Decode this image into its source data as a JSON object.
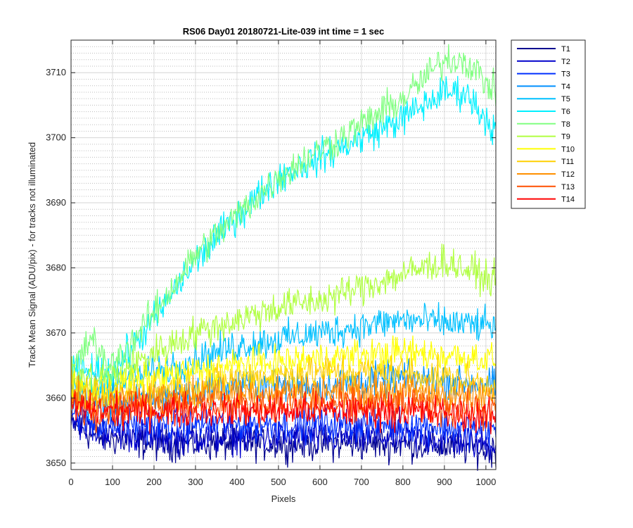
{
  "chart_data": {
    "type": "line",
    "title": "RS06 Day01 20180721-Lite-039 int time = 1 sec",
    "xlabel": "Pixels",
    "ylabel": "Track Mean Signal (ADU/pix) - for tracks not illuminated",
    "xlim": [
      0,
      1024
    ],
    "ylim": [
      3649,
      3715
    ],
    "xticks": [
      0,
      100,
      200,
      300,
      400,
      500,
      600,
      700,
      800,
      900,
      1000
    ],
    "yticks": [
      3650,
      3660,
      3670,
      3680,
      3690,
      3700,
      3710
    ],
    "grid": true,
    "legend_position": "outside-top-right",
    "series": [
      {
        "name": "T1",
        "color": "#00008f",
        "x": [
          0,
          60,
          200,
          400,
          600,
          800,
          1024
        ],
        "y": [
          3656,
          3654,
          3653,
          3653,
          3653,
          3653,
          3652
        ]
      },
      {
        "name": "T2",
        "color": "#0000cc",
        "x": [
          0,
          60,
          200,
          400,
          600,
          800,
          1024
        ],
        "y": [
          3657,
          3655,
          3654,
          3654,
          3654,
          3654,
          3653
        ]
      },
      {
        "name": "T3",
        "color": "#0030ff",
        "x": [
          0,
          60,
          200,
          400,
          600,
          800,
          1024
        ],
        "y": [
          3658,
          3656,
          3656,
          3656,
          3656,
          3656,
          3655
        ]
      },
      {
        "name": "T4",
        "color": "#0090ff",
        "x": [
          0,
          60,
          200,
          400,
          600,
          800,
          1024
        ],
        "y": [
          3660,
          3659,
          3660,
          3662,
          3662,
          3663,
          3662
        ]
      },
      {
        "name": "T5",
        "color": "#00c0ff",
        "x": [
          0,
          60,
          200,
          400,
          600,
          800,
          1024
        ],
        "y": [
          3662,
          3661,
          3664,
          3668,
          3670,
          3672,
          3671
        ]
      },
      {
        "name": "T6",
        "color": "#00f0ff",
        "x": [
          0,
          50,
          100,
          200,
          300,
          400,
          500,
          600,
          700,
          800,
          900,
          950,
          1024
        ],
        "y": [
          3664,
          3664,
          3664,
          3672,
          3681,
          3688,
          3694,
          3697,
          3700,
          3703,
          3707,
          3707,
          3701
        ]
      },
      {
        "name": "T8",
        "color": "#80ff80",
        "x": [
          0,
          40,
          50,
          70,
          100,
          200,
          300,
          400,
          500,
          600,
          700,
          800,
          900,
          950,
          1024
        ],
        "y": [
          3664,
          3668,
          3670,
          3666,
          3665,
          3673,
          3682,
          3688,
          3694,
          3698,
          3702,
          3706,
          3712,
          3712,
          3707
        ]
      },
      {
        "name": "T9",
        "color": "#b0ff40",
        "x": [
          0,
          100,
          200,
          300,
          400,
          500,
          600,
          700,
          800,
          900,
          1024
        ],
        "y": [
          3663,
          3663,
          3667,
          3670,
          3672,
          3674,
          3675,
          3677,
          3679,
          3681,
          3678
        ]
      },
      {
        "name": "T10",
        "color": "#ffff00",
        "x": [
          0,
          60,
          200,
          400,
          600,
          800,
          1024
        ],
        "y": [
          3662,
          3661,
          3663,
          3665,
          3666,
          3667,
          3666
        ]
      },
      {
        "name": "T11",
        "color": "#ffd000",
        "x": [
          0,
          60,
          200,
          400,
          600,
          800,
          1024
        ],
        "y": [
          3661,
          3660,
          3661,
          3663,
          3664,
          3664,
          3662
        ]
      },
      {
        "name": "T12",
        "color": "#ff9000",
        "x": [
          0,
          60,
          200,
          400,
          600,
          800,
          1024
        ],
        "y": [
          3660,
          3659,
          3660,
          3661,
          3661,
          3661,
          3660
        ]
      },
      {
        "name": "T13",
        "color": "#ff5000",
        "x": [
          0,
          60,
          200,
          400,
          600,
          800,
          1024
        ],
        "y": [
          3659,
          3658,
          3659,
          3659,
          3659,
          3659,
          3658
        ]
      },
      {
        "name": "T14",
        "color": "#ff0000",
        "x": [
          0,
          60,
          200,
          400,
          600,
          800,
          1024
        ],
        "y": [
          3659,
          3658,
          3658,
          3658,
          3658,
          3658,
          3657
        ]
      }
    ]
  }
}
